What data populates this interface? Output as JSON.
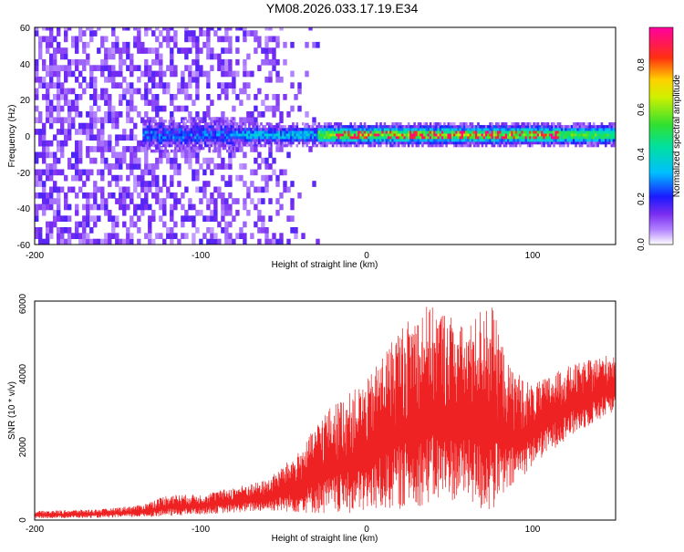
{
  "title": "YM08.2026.033.17.19.E34",
  "colors": {
    "spectrogram_low": "#ffffff",
    "spectrogram_purple": "#7a2df0",
    "snr_line": "#ee2222",
    "axis": "#000000"
  },
  "chart_data": [
    {
      "type": "heatmap",
      "title": "YM08.2026.033.17.19.E34",
      "xlabel": "Height of straight line (km)",
      "ylabel": "Frequency (Hz)",
      "xlim": [
        -200,
        150
      ],
      "ylim": [
        -60,
        60
      ],
      "xticks": [
        "-200",
        "-100",
        "0",
        "100"
      ],
      "yticks": [
        "-60",
        "-40",
        "-20",
        "0",
        "20",
        "40",
        "60"
      ],
      "colorbar": {
        "label": "Normalized spectral amplitude",
        "range": [
          0,
          0.95
        ],
        "ticks": [
          "0.0",
          "0.2",
          "0.4",
          "0.6",
          "0.8"
        ],
        "colormap": "purple-blue-cyan-green-yellow-red-magenta"
      },
      "description_of_signal": {
        "noise_dense_region_km": [
          -200,
          -50
        ],
        "narrowband_energy_start_km": -135,
        "narrowband_center_hz": 0,
        "narrowband_peak_amplitude_region_km": [
          -20,
          115
        ]
      }
    },
    {
      "type": "line",
      "xlabel": "Height of straight line (km)",
      "ylabel": "SNR (10 * v/v)",
      "xlim": [
        -200,
        150
      ],
      "ylim": [
        0,
        6000
      ],
      "xticks": [
        "-200",
        "-100",
        "0",
        "100"
      ],
      "yticks": [
        "0",
        "2000",
        "4000",
        "6000"
      ],
      "envelope": {
        "x": [
          -200,
          -160,
          -135,
          -120,
          -100,
          -80,
          -60,
          -40,
          -25,
          -10,
          0,
          10,
          20,
          35,
          50,
          60,
          70,
          75,
          85,
          100,
          120,
          150
        ],
        "upper": [
          250,
          300,
          420,
          700,
          700,
          900,
          1100,
          1900,
          3000,
          3500,
          3800,
          4600,
          5300,
          5900,
          5700,
          5200,
          5900,
          6000,
          4300,
          3700,
          4200,
          4600
        ],
        "lower": [
          50,
          60,
          80,
          100,
          150,
          200,
          250,
          200,
          150,
          150,
          200,
          250,
          300,
          400,
          500,
          600,
          150,
          200,
          700,
          1500,
          2200,
          3000
        ]
      },
      "color": "#ee2222"
    }
  ]
}
